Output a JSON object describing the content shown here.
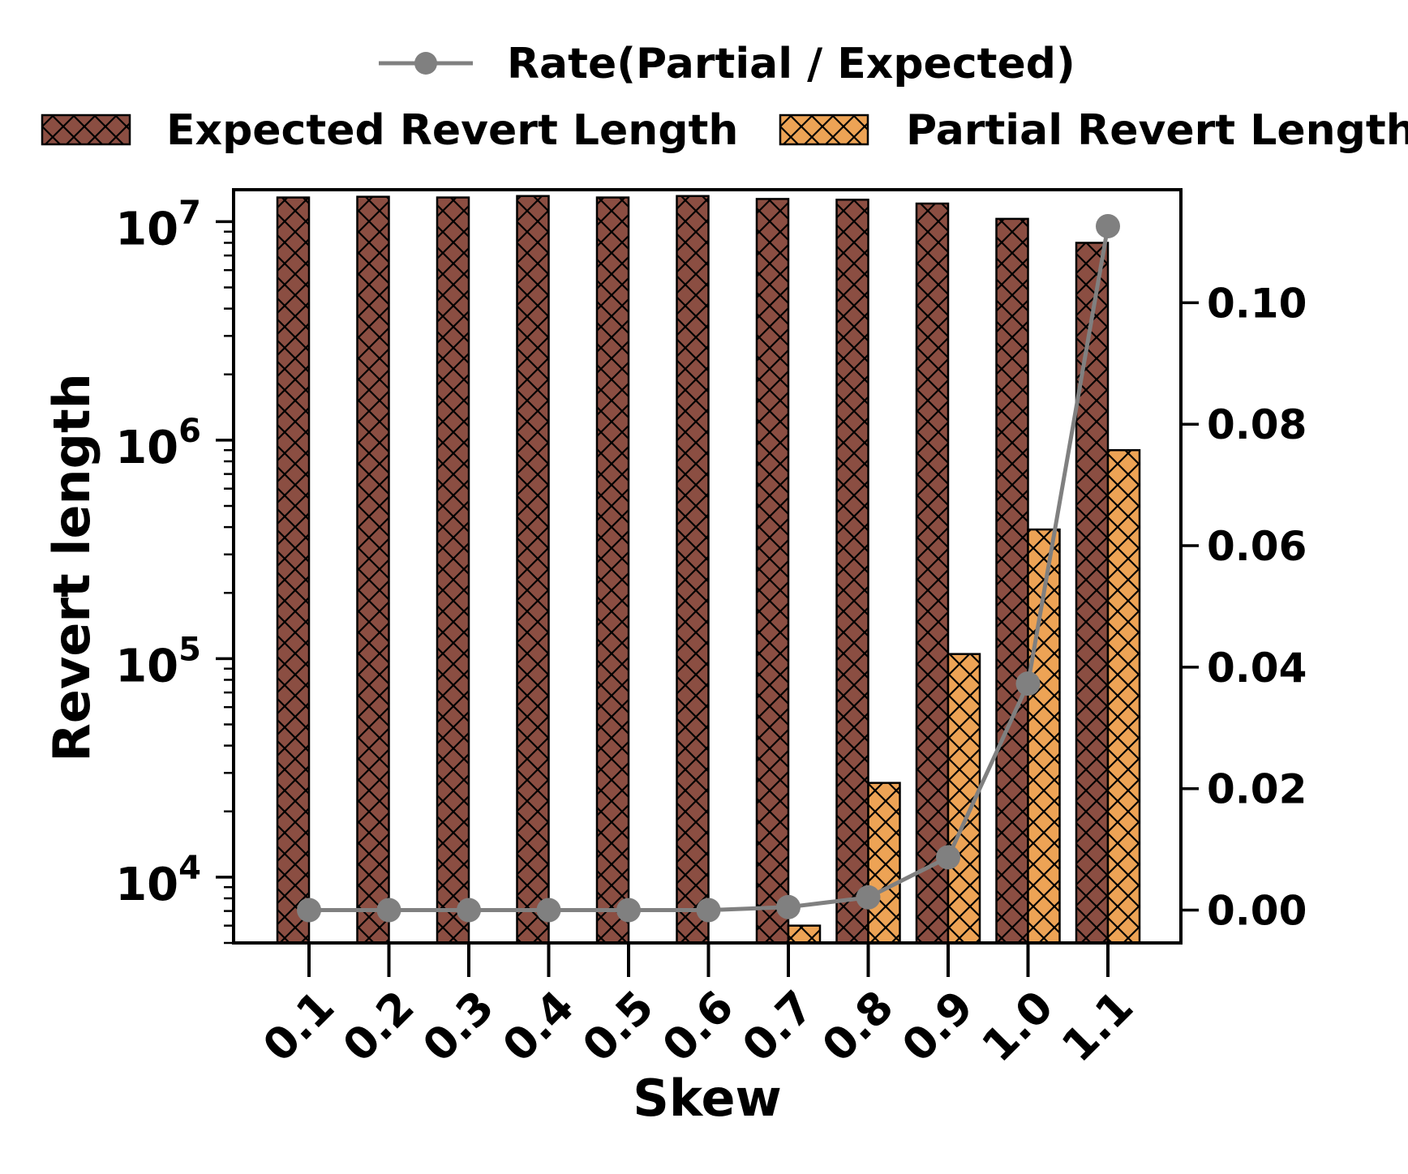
{
  "chart_data": {
    "type": "bar",
    "categories": [
      "0.1",
      "0.2",
      "0.3",
      "0.4",
      "0.5",
      "0.6",
      "0.7",
      "0.8",
      "0.9",
      "1.0",
      "1.1"
    ],
    "xlabel": "Skew",
    "ylabel": "Revert length",
    "y_scale": "log",
    "ylim": [
      5000,
      14000000
    ],
    "y_ticks": [
      {
        "value": 10000,
        "base": "10",
        "exp": "4"
      },
      {
        "value": 100000,
        "base": "10",
        "exp": "5"
      },
      {
        "value": 1000000,
        "base": "10",
        "exp": "6"
      },
      {
        "value": 10000000,
        "base": "10",
        "exp": "7"
      }
    ],
    "y2lim": [
      -0.0054,
      0.1186
    ],
    "y2_ticks": [
      "0.00",
      "0.02",
      "0.04",
      "0.06",
      "0.08",
      "0.10"
    ],
    "legend_placement": "top",
    "grid": false,
    "series": [
      {
        "name": "Expected Revert Length",
        "kind": "bar",
        "axis": "left",
        "color": "#8B4E42",
        "hatch": "cross",
        "values": [
          12900000,
          13000000,
          12900000,
          13100000,
          12900000,
          13100000,
          12700000,
          12600000,
          12100000,
          10300000,
          8000000
        ]
      },
      {
        "name": "Partial Revert Length",
        "kind": "bar",
        "axis": "left",
        "color": "#EDA355",
        "hatch": "cross",
        "values": [
          0,
          0,
          0,
          0,
          0,
          0,
          6000,
          27000,
          105000,
          390000,
          900000
        ]
      },
      {
        "name": "Rate(Partial / Expected)",
        "kind": "line",
        "axis": "right",
        "color": "#808080",
        "values": [
          0.0,
          0.0,
          0.0,
          0.0,
          0.0,
          0.0,
          0.0005,
          0.0021,
          0.0087,
          0.0373,
          0.1126
        ]
      }
    ]
  }
}
